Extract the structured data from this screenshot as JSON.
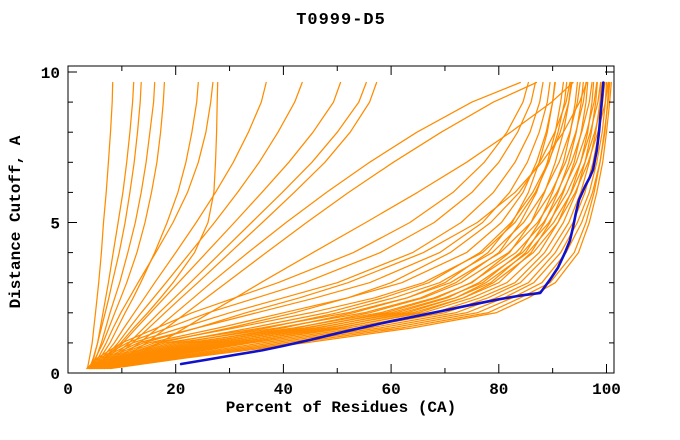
{
  "page": {
    "background": "#ffffff"
  },
  "colors": {
    "background": "#ffffff",
    "frame": "#000000",
    "text": "#000000",
    "model_line": "#ff8c00",
    "highlight_line": "#1111cd"
  },
  "chart_data": {
    "type": "line",
    "title": "T0999-D5",
    "xlabel": "Percent of Residues (CA)",
    "ylabel": "Distance Cutoff, A",
    "xlim": [
      0,
      101.5
    ],
    "ylim": [
      0,
      10.2
    ],
    "grid": false,
    "legend": "none",
    "x_ticks_major": [
      0,
      20,
      40,
      60,
      80,
      100
    ],
    "x_tick_labels": [
      "0",
      "20",
      "40",
      "60",
      "80",
      "100"
    ],
    "x_ticks_minor": [
      10,
      30,
      50,
      70,
      90
    ],
    "y_ticks_major": [
      0,
      5,
      10
    ],
    "y_tick_labels": [
      "0",
      "5",
      "10"
    ],
    "y_ticks_minor": [
      1,
      2,
      3,
      4,
      6,
      7,
      8,
      9
    ],
    "y_levels": [
      0.15,
      0.5,
      1,
      1.5,
      2,
      2.5,
      3,
      4,
      5,
      6,
      7,
      8,
      9,
      9.65
    ],
    "series": [
      {
        "name": "model-01",
        "role": "model",
        "x": [
          3.6,
          4.0,
          4.5,
          4.8,
          5.1,
          5.4,
          5.7,
          6.2,
          6.6,
          7.1,
          7.5,
          7.9,
          8.2,
          8.3
        ]
      },
      {
        "name": "model-02",
        "role": "model",
        "x": [
          4.2,
          4.8,
          5.5,
          6.0,
          6.5,
          7.0,
          7.5,
          8.4,
          9.3,
          10.2,
          10.9,
          11.5,
          12.0,
          12.2
        ]
      },
      {
        "name": "model-03",
        "role": "model",
        "x": [
          4.0,
          4.7,
          5.5,
          6.2,
          6.9,
          7.6,
          8.2,
          9.5,
          10.6,
          11.5,
          12.3,
          12.9,
          13.4,
          13.6
        ]
      },
      {
        "name": "model-04",
        "role": "model",
        "x": [
          4.4,
          5.2,
          6.2,
          7.0,
          7.8,
          8.7,
          9.6,
          11.1,
          12.5,
          13.6,
          14.5,
          15.2,
          15.9,
          16.1
        ]
      },
      {
        "name": "model-05",
        "role": "model",
        "x": [
          4.1,
          5.1,
          6.5,
          7.6,
          8.7,
          9.8,
          10.9,
          12.8,
          14.3,
          15.5,
          16.5,
          17.2,
          17.7,
          17.9
        ]
      },
      {
        "name": "model-06",
        "role": "model",
        "x": [
          4.8,
          6.0,
          7.8,
          9.2,
          10.6,
          12.1,
          13.5,
          16.1,
          18.4,
          20.4,
          21.9,
          23.0,
          23.9,
          24.2
        ]
      },
      {
        "name": "model-07",
        "role": "model",
        "x": [
          4.5,
          5.6,
          7.1,
          8.4,
          9.8,
          11.4,
          13.0,
          16.3,
          19.5,
          22.2,
          24.2,
          25.6,
          26.5,
          26.9
        ]
      },
      {
        "name": "model-08",
        "role": "model",
        "x": [
          5.4,
          7.0,
          9.8,
          12.2,
          14.8,
          17.2,
          19.5,
          23.5,
          26.0,
          27.1,
          27.4,
          27.6,
          27.7,
          27.8
        ]
      },
      {
        "name": "model-09",
        "role": "model",
        "x": [
          4.9,
          6.4,
          8.6,
          10.4,
          12.3,
          14.2,
          16.1,
          20.0,
          23.8,
          27.4,
          30.7,
          33.5,
          35.9,
          36.8
        ]
      },
      {
        "name": "model-10",
        "role": "model",
        "x": [
          5.2,
          6.8,
          9.3,
          11.4,
          13.6,
          15.9,
          18.2,
          22.7,
          27.2,
          31.5,
          35.5,
          39.0,
          42.1,
          43.5
        ]
      },
      {
        "name": "model-11",
        "role": "model",
        "x": [
          5.6,
          7.4,
          10.2,
          12.7,
          15.3,
          17.9,
          20.5,
          25.7,
          30.9,
          36.0,
          41.0,
          45.5,
          49.3,
          50.6
        ]
      },
      {
        "name": "model-12",
        "role": "model",
        "x": [
          6.4,
          8.6,
          12.0,
          15.0,
          18.0,
          21.0,
          24.1,
          30.1,
          36.1,
          42.0,
          47.7,
          52.4,
          56.0,
          57.3
        ]
      },
      {
        "name": "model-13",
        "role": "model",
        "x": [
          6.1,
          8.1,
          11.3,
          14.1,
          16.9,
          19.8,
          22.7,
          28.4,
          34.1,
          39.8,
          45.3,
          50.0,
          54.0,
          55.4
        ]
      },
      {
        "name": "model-14",
        "role": "model",
        "x": [
          6.8,
          9.4,
          13.3,
          16.7,
          20.0,
          23.3,
          26.6,
          33.4,
          40.5,
          48.0,
          56.0,
          64.8,
          75.0,
          84.0
        ]
      },
      {
        "name": "model-15",
        "role": "model",
        "x": [
          7.4,
          10.3,
          14.6,
          18.3,
          22.0,
          25.7,
          29.4,
          36.8,
          44.3,
          52.1,
          60.4,
          69.3,
          79.0,
          87.0
        ]
      },
      {
        "name": "model-16",
        "role": "model",
        "x": [
          8.0,
          11.6,
          17.0,
          21.7,
          26.3,
          31.1,
          35.8,
          45.5,
          55.3,
          64.9,
          74.0,
          82.2,
          89.8,
          93.8
        ]
      },
      {
        "name": "model-17",
        "role": "model",
        "x": [
          4.0,
          9.0,
          18,
          36,
          52,
          63,
          70,
          78,
          82.5,
          85.5,
          87.5,
          89,
          90,
          90.5
        ]
      },
      {
        "name": "model-18",
        "role": "model",
        "x": [
          4.3,
          10,
          20,
          39,
          55,
          65.5,
          72,
          80,
          84,
          87,
          89,
          90.5,
          91.5,
          92
        ]
      },
      {
        "name": "model-19",
        "role": "model",
        "x": [
          4.6,
          11,
          22,
          42,
          58,
          68,
          75,
          82,
          86,
          88.5,
          90.5,
          92,
          93,
          93.4
        ]
      },
      {
        "name": "model-20",
        "role": "model",
        "x": [
          4.9,
          12,
          24,
          44,
          60,
          70,
          77,
          84,
          87.5,
          90,
          92,
          93.3,
          94.2,
          94.6
        ]
      },
      {
        "name": "model-21",
        "role": "model",
        "x": [
          5.2,
          13,
          26,
          46,
          62,
          72,
          78.5,
          85,
          88.5,
          91,
          93,
          94.4,
          95.3,
          95.7
        ]
      },
      {
        "name": "model-22",
        "role": "model",
        "x": [
          5.5,
          14,
          28,
          48,
          64,
          73.5,
          80,
          86,
          89.5,
          92,
          94,
          95.3,
          96.2,
          96.5
        ]
      },
      {
        "name": "model-23",
        "role": "model",
        "x": [
          5.8,
          15,
          30,
          50,
          66,
          75,
          81.5,
          87.5,
          91,
          93.4,
          95.2,
          96.5,
          97.3,
          97.6
        ]
      },
      {
        "name": "model-24",
        "role": "model",
        "x": [
          6.1,
          16,
          32,
          52,
          68,
          76.5,
          83,
          88.5,
          92,
          94.4,
          96,
          97.2,
          98,
          98.3
        ]
      },
      {
        "name": "model-25",
        "role": "model",
        "x": [
          6.4,
          17,
          34,
          54,
          70,
          78,
          84,
          89.5,
          93,
          95.2,
          96.8,
          98,
          98.8,
          99
        ]
      },
      {
        "name": "model-26",
        "role": "model",
        "x": [
          6.7,
          18,
          36,
          56,
          72,
          79.5,
          85.5,
          90.5,
          93.8,
          96,
          97.5,
          98.6,
          99.3,
          99.6
        ]
      },
      {
        "name": "model-27",
        "role": "model",
        "x": [
          7.0,
          19,
          38,
          58,
          74,
          81,
          86.5,
          91.5,
          94.6,
          96.8,
          98.2,
          99.2,
          99.8,
          100
        ]
      },
      {
        "name": "model-28",
        "role": "model",
        "x": [
          7.3,
          20,
          40,
          60,
          76,
          82.5,
          88,
          92.5,
          95.4,
          97.4,
          98.8,
          99.7,
          100.2,
          100.4
        ]
      },
      {
        "name": "model-29",
        "role": "model",
        "x": [
          4.2,
          8,
          15,
          28,
          40,
          52,
          62,
          74,
          80.5,
          84.5,
          87,
          88.8,
          90,
          90.4
        ]
      },
      {
        "name": "model-30",
        "role": "model",
        "x": [
          4.5,
          8.5,
          16,
          31,
          45,
          57,
          66,
          77,
          83,
          86.8,
          89.3,
          91,
          92.2,
          92.6
        ]
      },
      {
        "name": "model-31",
        "role": "model",
        "x": [
          4.0,
          7,
          13,
          24,
          35,
          46,
          56,
          69,
          77,
          82,
          85.3,
          87.5,
          89,
          89.5
        ]
      },
      {
        "name": "model-32",
        "role": "model",
        "x": [
          3.8,
          6.5,
          12,
          21,
          30,
          40,
          50,
          64,
          73,
          79,
          83,
          85.8,
          87.6,
          88.2
        ]
      },
      {
        "name": "model-33",
        "role": "model",
        "x": [
          3.6,
          6,
          11,
          18.5,
          26,
          35,
          44,
          58,
          68,
          75,
          80,
          83.5,
          86,
          86.8
        ]
      },
      {
        "name": "model-34",
        "role": "model",
        "x": [
          3.5,
          5.5,
          10,
          16.5,
          23,
          31,
          39,
          53,
          63.5,
          71.5,
          77.3,
          81.5,
          84.5,
          85.5
        ]
      },
      {
        "name": "model-35",
        "role": "model",
        "x": [
          4.1,
          7.5,
          14,
          24,
          33,
          43,
          52,
          66,
          76,
          83,
          88,
          92,
          95,
          96.3
        ]
      },
      {
        "name": "model-36",
        "role": "model",
        "x": [
          4.4,
          9,
          17,
          30,
          42,
          52,
          60,
          71,
          78.5,
          83.8,
          87.6,
          90.4,
          92.5,
          93.2
        ]
      },
      {
        "name": "model-37",
        "role": "model",
        "x": [
          4.7,
          9.5,
          19,
          34,
          48,
          58.5,
          67,
          76.5,
          82.3,
          86.3,
          89.2,
          91.4,
          93,
          93.6
        ]
      },
      {
        "name": "model-38",
        "role": "model",
        "x": [
          5.0,
          10.5,
          21,
          37,
          50,
          60.5,
          69,
          78.8,
          84.6,
          88.4,
          91.2,
          93.2,
          94.6,
          95.1
        ]
      },
      {
        "name": "model-39",
        "role": "model",
        "x": [
          5.3,
          11.5,
          23,
          40,
          53,
          63,
          71,
          80.3,
          86,
          89.7,
          92.4,
          94.3,
          95.7,
          96.2
        ]
      },
      {
        "name": "model-40",
        "role": "model",
        "x": [
          5.6,
          12.5,
          25,
          42.5,
          56,
          66,
          73,
          81.8,
          87.2,
          90.8,
          93.5,
          95.4,
          96.8,
          97.3
        ]
      },
      {
        "name": "model-41",
        "role": "model",
        "x": [
          5.9,
          13.5,
          27,
          44.5,
          59,
          68.5,
          74.8,
          83.2,
          88.3,
          91.8,
          94.4,
          96.3,
          97.7,
          98.2
        ]
      },
      {
        "name": "model-42",
        "role": "model",
        "x": [
          6.2,
          14.5,
          29,
          46.5,
          61,
          70.5,
          76.3,
          84.4,
          89.3,
          92.7,
          95.2,
          97,
          98.4,
          98.9
        ]
      },
      {
        "name": "model-43",
        "role": "model",
        "x": [
          6.5,
          15.5,
          31,
          48.5,
          63,
          72,
          77.6,
          85.4,
          90.2,
          93.5,
          96,
          97.8,
          99.2,
          99.7
        ]
      },
      {
        "name": "model-44",
        "role": "model",
        "x": [
          6.8,
          16.5,
          33,
          50.5,
          65,
          73.5,
          79,
          86.4,
          91,
          94.2,
          96.6,
          98.4,
          99.8,
          100.3
        ]
      },
      {
        "name": "model-45",
        "role": "model",
        "x": [
          7.6,
          21,
          42,
          62,
          78,
          84,
          89.5,
          94,
          96.2,
          97.7,
          98.8,
          99.6,
          100.3,
          100.6
        ]
      },
      {
        "name": "model-46",
        "role": "model",
        "x": [
          7.9,
          22,
          44,
          64,
          79.5,
          85.5,
          90.5,
          94.8,
          96.8,
          98.2,
          99.3,
          100,
          100.6,
          100.9
        ]
      },
      {
        "name": "selected-model",
        "role": "highlight",
        "points": [
          [
            21,
            0.3
          ],
          [
            26,
            0.45
          ],
          [
            31,
            0.6
          ],
          [
            36,
            0.75
          ],
          [
            40,
            0.9
          ],
          [
            45,
            1.1
          ],
          [
            50,
            1.32
          ],
          [
            55,
            1.52
          ],
          [
            60,
            1.72
          ],
          [
            65,
            1.9
          ],
          [
            70,
            2.08
          ],
          [
            75,
            2.27
          ],
          [
            80,
            2.45
          ],
          [
            84,
            2.57
          ],
          [
            87.7,
            2.66
          ],
          [
            89.5,
            3.1
          ],
          [
            91,
            3.5
          ],
          [
            92.3,
            4.0
          ],
          [
            93.2,
            4.4
          ],
          [
            93.8,
            4.85
          ],
          [
            94.3,
            5.3
          ],
          [
            94.9,
            5.75
          ],
          [
            96,
            6.2
          ],
          [
            96.9,
            6.5
          ],
          [
            97.5,
            6.75
          ],
          [
            98.2,
            7.4
          ],
          [
            98.6,
            8.0
          ],
          [
            98.9,
            8.6
          ],
          [
            99.2,
            9.2
          ],
          [
            99.4,
            9.65
          ]
        ]
      }
    ]
  }
}
